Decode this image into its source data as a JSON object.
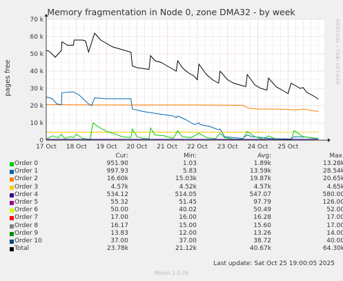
{
  "title": "Memory fragmentation in Node 0, zone DMA32 - by week",
  "ylabel": "pages free",
  "side_label": "RRDTOOL / TOBI OETIKER",
  "footer": "Munin 2.0.76",
  "last_update": "Last update: Sat Oct 25 19:00:05 2025",
  "legend_headers": {
    "cur": "Cur:",
    "min": "Min:",
    "avg": "Avg:",
    "max": "Max:"
  },
  "legend": [
    {
      "name": "Order 0",
      "color": "#00cc00",
      "cur": "951.90",
      "min": "1.03",
      "avg": "1.89k",
      "max": "13.28k"
    },
    {
      "name": "Order 1",
      "color": "#0066b3",
      "cur": "997.93",
      "min": "5.83",
      "avg": "13.59k",
      "max": "28.54k"
    },
    {
      "name": "Order 2",
      "color": "#ff8000",
      "cur": "16.60k",
      "min": "15.03k",
      "avg": "19.87k",
      "max": "20.65k"
    },
    {
      "name": "Order 3",
      "color": "#ffcc00",
      "cur": "4.57k",
      "min": "4.52k",
      "avg": "4.57k",
      "max": "4.65k"
    },
    {
      "name": "Order 4",
      "color": "#330099",
      "cur": "534.12",
      "min": "514.05",
      "avg": "547.07",
      "max": "580.00"
    },
    {
      "name": "Order 5",
      "color": "#990099",
      "cur": "55.32",
      "min": "51.45",
      "avg": "97.79",
      "max": "126.00"
    },
    {
      "name": "Order 6",
      "color": "#ccff00",
      "cur": "50.00",
      "min": "40.02",
      "avg": "50.49",
      "max": "52.00"
    },
    {
      "name": "Order 7",
      "color": "#ff0000",
      "cur": "17.00",
      "min": "16.00",
      "avg": "16.28",
      "max": "17.00"
    },
    {
      "name": "Order 8",
      "color": "#808080",
      "cur": "16.17",
      "min": "15.00",
      "avg": "15.60",
      "max": "17.00"
    },
    {
      "name": "Order 9",
      "color": "#008f00",
      "cur": "13.83",
      "min": "12.00",
      "avg": "13.26",
      "max": "14.00"
    },
    {
      "name": "Order 10",
      "color": "#00487d",
      "cur": "37.00",
      "min": "37.00",
      "avg": "38.72",
      "max": "40.00"
    },
    {
      "name": "Total",
      "color": "#000000",
      "cur": "23.78k",
      "min": "21.12k",
      "avg": "40.67k",
      "max": "64.30k"
    }
  ],
  "chart_data": {
    "type": "line",
    "title": "Memory fragmentation in Node 0, zone DMA32 - by week",
    "ylabel": "pages free",
    "xlabel": "",
    "ylim": [
      0,
      70000
    ],
    "yticks": [
      0,
      10000,
      20000,
      30000,
      40000,
      50000,
      60000,
      70000
    ],
    "ytick_labels": [
      "0",
      "10 k",
      "20 k",
      "30 k",
      "40 k",
      "50 k",
      "60 k",
      "70 k"
    ],
    "xlim": [
      0,
      9.2
    ],
    "xticks": [
      0,
      1,
      2,
      3,
      4,
      5,
      6,
      7,
      8
    ],
    "xtick_labels": [
      "17 Oct",
      "18 Oct",
      "19 Oct",
      "20 Oct",
      "21 Oct",
      "22 Oct",
      "23 Oct",
      "24 Oct",
      "25 Oct"
    ],
    "grid": true,
    "series": [
      {
        "name": "Total",
        "color": "#000000",
        "x": [
          0,
          0.1,
          0.3,
          0.5,
          0.52,
          0.7,
          0.9,
          0.92,
          1.2,
          1.3,
          1.4,
          1.6,
          1.8,
          1.9,
          2.2,
          2.4,
          2.6,
          2.8,
          2.85,
          3.0,
          3.2,
          3.4,
          3.45,
          3.6,
          3.8,
          4.0,
          4.2,
          4.3,
          4.35,
          4.5,
          4.7,
          4.9,
          5.0,
          5.05,
          5.3,
          5.5,
          5.7,
          5.75,
          6.0,
          6.2,
          6.4,
          6.6,
          6.65,
          6.9,
          7.1,
          7.3,
          7.35,
          7.6,
          7.8,
          8.0,
          8.1,
          8.4,
          8.5,
          8.6,
          8.9,
          9.0
        ],
        "values": [
          52000,
          51500,
          48000,
          52000,
          57000,
          55000,
          55000,
          58000,
          58000,
          57500,
          51000,
          62000,
          58000,
          57000,
          54000,
          53000,
          52000,
          51000,
          43000,
          42000,
          41500,
          41000,
          49000,
          46000,
          45000,
          43000,
          41000,
          40000,
          46000,
          42000,
          39000,
          37000,
          35000,
          44000,
          38000,
          35000,
          33000,
          40000,
          35000,
          33000,
          32000,
          31000,
          38000,
          32000,
          30000,
          29000,
          36000,
          31000,
          29000,
          27000,
          33000,
          30000,
          30500,
          28000,
          25000,
          23780
        ]
      },
      {
        "name": "Order 2",
        "color": "#ff8000",
        "x": [
          0,
          0.5,
          1.0,
          2.0,
          3.0,
          4.0,
          5.0,
          6.0,
          6.5,
          6.7,
          7.0,
          7.5,
          8.0,
          8.2,
          8.5,
          9.0
        ],
        "values": [
          20600,
          20550,
          20500,
          20450,
          20400,
          20400,
          20400,
          20300,
          20200,
          18500,
          18000,
          18000,
          17800,
          17500,
          18000,
          16600
        ]
      },
      {
        "name": "Order 1",
        "color": "#0066b3",
        "x": [
          0,
          0.2,
          0.35,
          0.5,
          0.52,
          0.9,
          1.0,
          1.1,
          1.4,
          1.5,
          1.6,
          2.0,
          2.5,
          2.8,
          2.85,
          3.0,
          3.1,
          3.4,
          3.45,
          3.6,
          3.8,
          4.2,
          4.3,
          4.35,
          4.6,
          4.9,
          5.05,
          5.1,
          5.4,
          5.7,
          5.75,
          5.9,
          6.2,
          6.5,
          6.65,
          6.8,
          7.2,
          7.35,
          7.5,
          8.1,
          8.2,
          8.6,
          8.8,
          9.0
        ],
        "values": [
          25000,
          24000,
          21000,
          20500,
          27500,
          28000,
          27000,
          26000,
          21000,
          20000,
          24500,
          24000,
          24000,
          24000,
          18000,
          17500,
          17000,
          16000,
          16000,
          15500,
          15000,
          14000,
          13000,
          14000,
          12000,
          9000,
          10000,
          9000,
          8000,
          6000,
          6500,
          2000,
          1500,
          1000,
          3000,
          2000,
          1500,
          1000,
          800,
          700,
          2000,
          1800,
          1200,
          998
        ]
      },
      {
        "name": "Order 3",
        "color": "#ffcc00",
        "x": [
          0,
          9.0
        ],
        "values": [
          4600,
          4570
        ]
      },
      {
        "name": "Order 0",
        "color": "#00cc00",
        "x": [
          0,
          0.2,
          0.4,
          0.5,
          0.6,
          0.8,
          0.9,
          1.0,
          1.2,
          1.45,
          1.55,
          1.7,
          2.0,
          2.3,
          2.5,
          2.8,
          2.85,
          3.0,
          3.2,
          3.4,
          3.45,
          3.6,
          3.9,
          4.2,
          4.35,
          4.5,
          4.8,
          5.05,
          5.3,
          5.6,
          5.75,
          5.9,
          6.2,
          6.5,
          6.65,
          6.9,
          7.2,
          7.35,
          7.6,
          8.1,
          8.2,
          8.5,
          9.0
        ],
        "values": [
          500,
          2500,
          1500,
          3500,
          1000,
          2000,
          1500,
          3500,
          1000,
          500,
          10000,
          8000,
          5000,
          3500,
          2000,
          1500,
          6500,
          2000,
          1000,
          800,
          7000,
          3000,
          2500,
          1000,
          5500,
          2000,
          1500,
          4000,
          1500,
          800,
          4000,
          1500,
          600,
          500,
          5000,
          2000,
          500,
          2500,
          600,
          300,
          5500,
          2000,
          952
        ]
      },
      {
        "name": "Order 4",
        "color": "#330099",
        "x": [
          0,
          9.0
        ],
        "values": [
          540,
          534
        ]
      }
    ]
  }
}
